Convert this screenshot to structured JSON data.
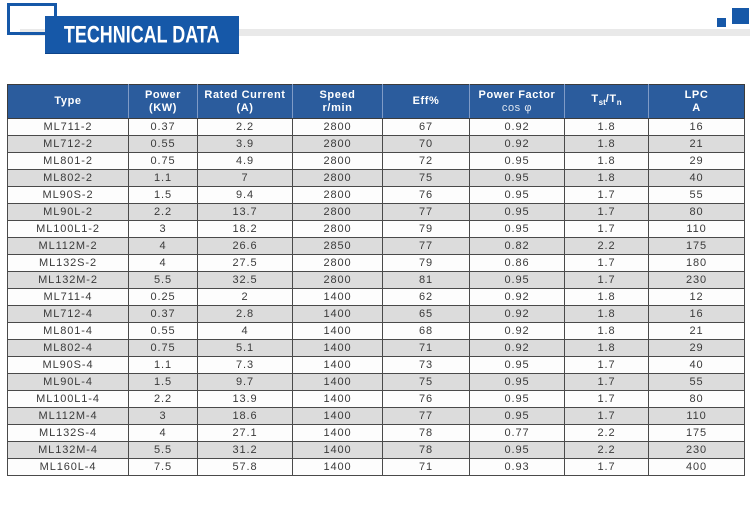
{
  "page": {
    "banner_title": "TECHNICAL DATA"
  },
  "colors": {
    "brand_blue": "#1658a8",
    "table_header_blue": "#2b5c9d",
    "header_divider_blue": "#7f9bc7",
    "row_alt_gray": "#dcdcdc",
    "band_gray": "#e9e9e9",
    "grid_border": "#4a4a4a",
    "body_text": "#3a3a3a"
  },
  "table": {
    "columns": [
      {
        "line1": "Type",
        "line2": ""
      },
      {
        "line1": "Power",
        "line2": "(KW)"
      },
      {
        "line1": "Rated Current",
        "line2": "(A)"
      },
      {
        "line1": "Speed",
        "line2": "r/min"
      },
      {
        "line1": "Eff%",
        "line2": ""
      },
      {
        "line1": "Power Factor",
        "line2": "cos φ"
      },
      {
        "parts": {
          "t1": "T",
          "sub1": "st",
          "t2": "/T",
          "sub2": "n"
        }
      },
      {
        "line1": "LPC",
        "line2": "A"
      }
    ],
    "rows": [
      [
        "ML711-2",
        "0.37",
        "2.2",
        "2800",
        "67",
        "0.92",
        "1.8",
        "16"
      ],
      [
        "ML712-2",
        "0.55",
        "3.9",
        "2800",
        "70",
        "0.92",
        "1.8",
        "21"
      ],
      [
        "ML801-2",
        "0.75",
        "4.9",
        "2800",
        "72",
        "0.95",
        "1.8",
        "29"
      ],
      [
        "ML802-2",
        "1.1",
        "7",
        "2800",
        "75",
        "0.95",
        "1.8",
        "40"
      ],
      [
        "ML90S-2",
        "1.5",
        "9.4",
        "2800",
        "76",
        "0.95",
        "1.7",
        "55"
      ],
      [
        "ML90L-2",
        "2.2",
        "13.7",
        "2800",
        "77",
        "0.95",
        "1.7",
        "80"
      ],
      [
        "ML100L1-2",
        "3",
        "18.2",
        "2800",
        "79",
        "0.95",
        "1.7",
        "110"
      ],
      [
        "ML112M-2",
        "4",
        "26.6",
        "2850",
        "77",
        "0.82",
        "2.2",
        "175"
      ],
      [
        "ML132S-2",
        "4",
        "27.5",
        "2800",
        "79",
        "0.86",
        "1.7",
        "180"
      ],
      [
        "ML132M-2",
        "5.5",
        "32.5",
        "2800",
        "81",
        "0.95",
        "1.7",
        "230"
      ],
      [
        "ML711-4",
        "0.25",
        "2",
        "1400",
        "62",
        "0.92",
        "1.8",
        "12"
      ],
      [
        "ML712-4",
        "0.37",
        "2.8",
        "1400",
        "65",
        "0.92",
        "1.8",
        "16"
      ],
      [
        "ML801-4",
        "0.55",
        "4",
        "1400",
        "68",
        "0.92",
        "1.8",
        "21"
      ],
      [
        "ML802-4",
        "0.75",
        "5.1",
        "1400",
        "71",
        "0.92",
        "1.8",
        "29"
      ],
      [
        "ML90S-4",
        "1.1",
        "7.3",
        "1400",
        "73",
        "0.95",
        "1.7",
        "40"
      ],
      [
        "ML90L-4",
        "1.5",
        "9.7",
        "1400",
        "75",
        "0.95",
        "1.7",
        "55"
      ],
      [
        "ML100L1-4",
        "2.2",
        "13.9",
        "1400",
        "76",
        "0.95",
        "1.7",
        "80"
      ],
      [
        "ML112M-4",
        "3",
        "18.6",
        "1400",
        "77",
        "0.95",
        "1.7",
        "110"
      ],
      [
        "ML132S-4",
        "4",
        "27.1",
        "1400",
        "78",
        "0.77",
        "2.2",
        "175"
      ],
      [
        "ML132M-4",
        "5.5",
        "31.2",
        "1400",
        "78",
        "0.95",
        "2.2",
        "230"
      ],
      [
        "ML160L-4",
        "7.5",
        "57.8",
        "1400",
        "71",
        "0.93",
        "1.7",
        "400"
      ]
    ]
  }
}
